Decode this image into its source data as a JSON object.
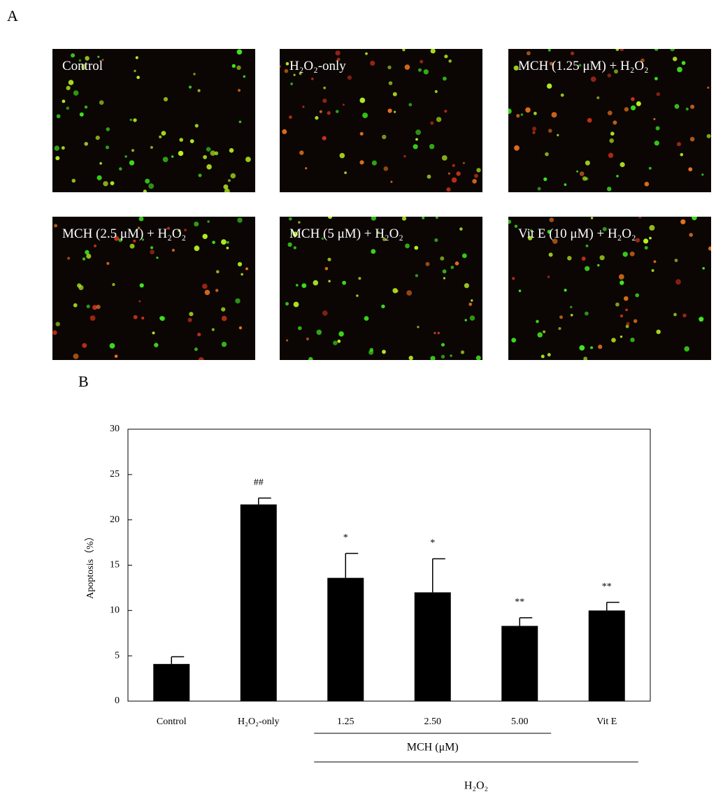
{
  "panel_labels": [
    "A",
    "B"
  ],
  "images": [
    {
      "label": "Control"
    },
    {
      "label": "H₂O₂-only"
    },
    {
      "label": "MCH (1.25 μM) + H₂O₂"
    },
    {
      "label": "MCH (2.5 μM) + H₂O₂"
    },
    {
      "label": "MCH (5 μM) + H₂O₂"
    },
    {
      "label": "Vit E (10 μM) + H₂O₂"
    }
  ],
  "chart_data": {
    "type": "bar",
    "y_label": "Apoptosis（%）",
    "categories": [
      "Control",
      "H₂O₂-only",
      "1.25",
      "2.50",
      "5.00",
      "Vit E"
    ],
    "values": [
      4.1,
      21.7,
      13.6,
      12.0,
      8.3,
      10.0
    ],
    "errors": [
      0.8,
      0.7,
      2.7,
      3.7,
      0.9,
      0.9
    ],
    "annotations": [
      null,
      "##",
      "*",
      "*",
      "**",
      "**"
    ],
    "group_labels": [
      "MCH (μM)",
      "H₂O₂"
    ],
    "color": "#000000",
    "ylim": [
      0,
      30
    ],
    "yticks": [
      0,
      5,
      10,
      15,
      20,
      25,
      30
    ]
  }
}
